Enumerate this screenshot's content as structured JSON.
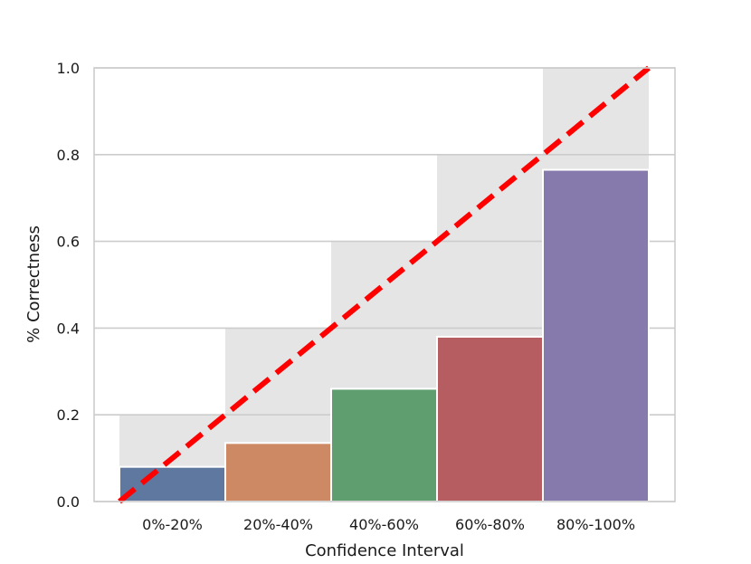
{
  "chart_data": {
    "type": "bar",
    "title": "",
    "xlabel": "Confidence Interval",
    "ylabel": "% Correctness",
    "categories": [
      "0%-20%",
      "20%-40%",
      "40%-60%",
      "60%-80%",
      "80%-100%"
    ],
    "series": [
      {
        "values": [
          0.08,
          0.135,
          0.26,
          0.38,
          0.765
        ]
      }
    ],
    "expected_bins": [
      0.2,
      0.4,
      0.6,
      0.8,
      1.0
    ],
    "ideal_line": {
      "from": [
        0,
        0
      ],
      "to": [
        1,
        1
      ],
      "color": "#ff0000",
      "style": "dashed"
    },
    "ylim": [
      0,
      1.0
    ],
    "yticks": [
      "0.0",
      "0.2",
      "0.4",
      "0.6",
      "0.8",
      "1.0"
    ],
    "grid": true,
    "legend": "none",
    "colors": {
      "bars": [
        "#5f78a0",
        "#cc8963",
        "#5f9e6e",
        "#b55d60",
        "#857aab"
      ],
      "expected_bins": "#e5e5e5",
      "grid": "#cccccc",
      "frame": "#cccccc",
      "background": "#ffffff"
    }
  }
}
